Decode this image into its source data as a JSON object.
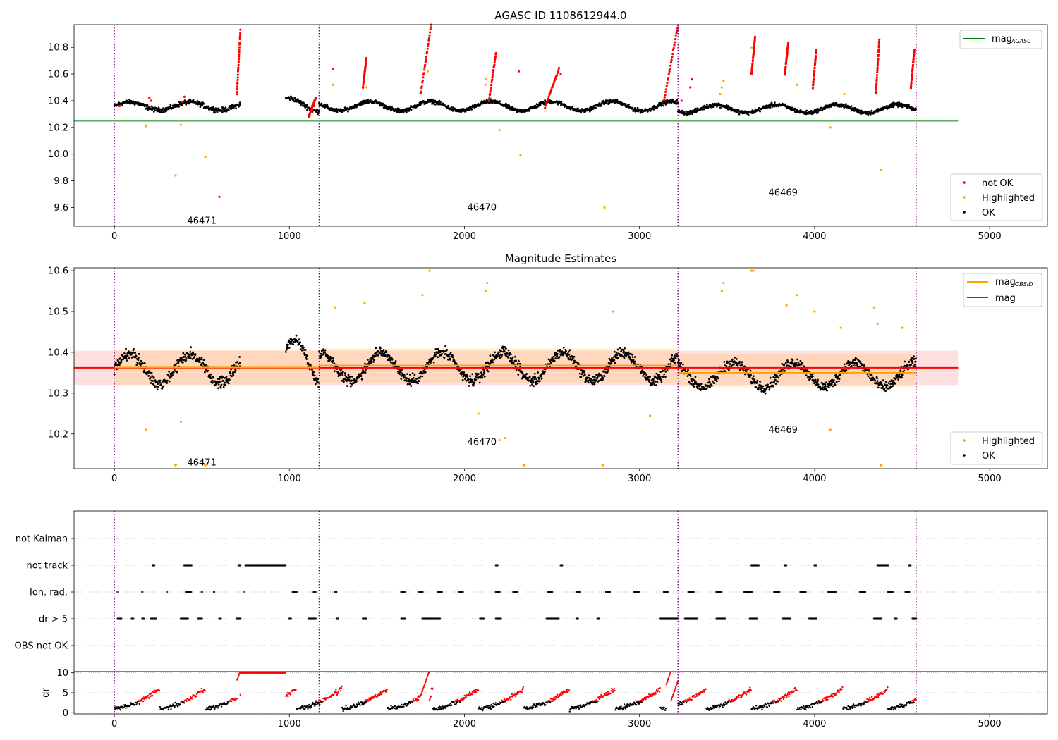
{
  "x_ticks": [
    "0",
    "1000",
    "2000",
    "3000",
    "4000",
    "5000"
  ],
  "chart_data": [
    {
      "type": "scatter",
      "title": "AGASC ID 1108612944.0",
      "xlim": [
        -230,
        5330
      ],
      "ylim": [
        9.46,
        10.97
      ],
      "y_ticks": [
        "9.6",
        "9.8",
        "10.0",
        "10.2",
        "10.4",
        "10.6",
        "10.8"
      ],
      "y_tick_values": [
        9.6,
        9.8,
        10.0,
        10.2,
        10.4,
        10.6,
        10.8
      ],
      "boundaries": [
        0,
        1170,
        3220,
        4580
      ],
      "obsids": [
        {
          "id": "46471",
          "x": 500,
          "y": 9.5
        },
        {
          "id": "46470",
          "x": 2100,
          "y": 9.6
        },
        {
          "id": "46469",
          "x": 3820,
          "y": 9.71
        }
      ],
      "reference_line": {
        "label": "mag",
        "sub": "AGASC",
        "y": 10.25,
        "x0": -230,
        "x1": 4820,
        "color": "#008000"
      },
      "segments": [
        {
          "x0": 0,
          "x1": 720,
          "base": 10.36,
          "amp": 0.03,
          "noise": 0.025
        },
        {
          "x0": 980,
          "x1": 1170,
          "base": 10.37,
          "amp": 0.05,
          "noise": 0.025
        },
        {
          "x0": 1170,
          "x1": 3220,
          "base": 10.36,
          "amp": 0.035,
          "noise": 0.022
        },
        {
          "x0": 3220,
          "x1": 4580,
          "base": 10.34,
          "amp": 0.03,
          "noise": 0.022
        }
      ],
      "not_ok_ramps": [
        {
          "x0": 700,
          "x1": 720,
          "y0": 10.45,
          "y1": 10.93
        },
        {
          "x0": 1110,
          "x1": 1150,
          "y0": 10.28,
          "y1": 10.42
        },
        {
          "x0": 1420,
          "x1": 1440,
          "y0": 10.5,
          "y1": 10.72
        },
        {
          "x0": 1750,
          "x1": 1810,
          "y0": 10.45,
          "y1": 10.97
        },
        {
          "x0": 2140,
          "x1": 2180,
          "y0": 10.4,
          "y1": 10.76
        },
        {
          "x0": 2460,
          "x1": 2540,
          "y0": 10.35,
          "y1": 10.64
        },
        {
          "x0": 3140,
          "x1": 3220,
          "y0": 10.4,
          "y1": 10.97
        },
        {
          "x0": 3640,
          "x1": 3660,
          "y0": 10.6,
          "y1": 10.88
        },
        {
          "x0": 3830,
          "x1": 3850,
          "y0": 10.6,
          "y1": 10.84
        },
        {
          "x0": 3990,
          "x1": 4010,
          "y0": 10.5,
          "y1": 10.78
        },
        {
          "x0": 4350,
          "x1": 4370,
          "y0": 10.45,
          "y1": 10.86
        },
        {
          "x0": 4550,
          "x1": 4570,
          "y0": 10.5,
          "y1": 10.78
        }
      ],
      "highlighted": [
        [
          180,
          10.21
        ],
        [
          350,
          9.84
        ],
        [
          380,
          10.22
        ],
        [
          520,
          9.98
        ],
        [
          2320,
          9.99
        ],
        [
          2200,
          10.18
        ],
        [
          2800,
          9.6
        ],
        [
          4380,
          9.88
        ],
        [
          4090,
          10.2
        ],
        [
          3470,
          10.5
        ],
        [
          3480,
          10.55
        ],
        [
          3640,
          10.8
        ],
        [
          3460,
          10.45
        ],
        [
          1250,
          10.52
        ],
        [
          1440,
          10.5
        ],
        [
          2120,
          10.52
        ],
        [
          2125,
          10.56
        ],
        [
          1790,
          10.62
        ],
        [
          4170,
          10.45
        ],
        [
          3900,
          10.52
        ]
      ],
      "outliers_not_ok": [
        [
          600,
          9.68
        ],
        [
          2310,
          10.62
        ],
        [
          1250,
          10.64
        ],
        [
          2550,
          10.6
        ]
      ],
      "legend": {
        "items": [
          "not OK",
          "Highlighted",
          "OK"
        ]
      }
    },
    {
      "type": "scatter",
      "title": "Magnitude Estimates",
      "xlim": [
        -230,
        5330
      ],
      "ylim": [
        10.115,
        10.607
      ],
      "y_ticks": [
        "10.2",
        "10.3",
        "10.4",
        "10.5",
        "10.6"
      ],
      "y_tick_values": [
        10.2,
        10.3,
        10.4,
        10.5,
        10.6
      ],
      "boundaries": [
        0,
        1170,
        3220,
        4580
      ],
      "obsids": [
        {
          "id": "46471",
          "x": 500,
          "y": 10.13
        },
        {
          "id": "46470",
          "x": 2100,
          "y": 10.18
        },
        {
          "id": "46469",
          "x": 3820,
          "y": 10.21
        }
      ],
      "mag_line": {
        "label": "mag",
        "y": 10.362,
        "band": [
          10.32,
          10.404
        ],
        "x0": -230,
        "x1": 4820,
        "color": "#ff0000"
      },
      "mag_obsid": {
        "label": "mag",
        "sub": "OBSID",
        "color": "#ffa500",
        "steps": [
          {
            "x0": 0,
            "x1": 1170,
            "y": 10.363,
            "band": [
              10.32,
              10.406
            ]
          },
          {
            "x0": 1170,
            "x1": 3220,
            "y": 10.368,
            "band": [
              10.325,
              10.41
            ]
          },
          {
            "x0": 3220,
            "x1": 4580,
            "y": 10.35,
            "band": [
              10.315,
              10.395
            ]
          }
        ]
      },
      "highlighted": [
        [
          180,
          10.21
        ],
        [
          380,
          10.23
        ],
        [
          2080,
          10.25
        ],
        [
          2200,
          10.185
        ],
        [
          2230,
          10.19
        ],
        [
          3060,
          10.245
        ],
        [
          4090,
          10.21
        ],
        [
          1260,
          10.51
        ],
        [
          1430,
          10.52
        ],
        [
          1760,
          10.54
        ],
        [
          1800,
          10.6
        ],
        [
          2120,
          10.55
        ],
        [
          2130,
          10.57
        ],
        [
          2850,
          10.5
        ],
        [
          3470,
          10.55
        ],
        [
          3480,
          10.57
        ],
        [
          3640,
          10.6
        ],
        [
          3650,
          10.6
        ],
        [
          3840,
          10.515
        ],
        [
          3900,
          10.54
        ],
        [
          4000,
          10.5
        ],
        [
          4150,
          10.46
        ],
        [
          4340,
          10.51
        ],
        [
          4360,
          10.47
        ],
        [
          4500,
          10.46
        ]
      ],
      "triangles_low": [
        350,
        520,
        2340,
        2790,
        4380
      ],
      "legend": {
        "items": [
          "Highlighted",
          "OK"
        ]
      }
    },
    {
      "type": "event_flags",
      "categories": [
        "not Kalman",
        "not track",
        "Ion. rad.",
        "dr > 5",
        "OBS not OK"
      ],
      "xlim": [
        -230,
        5330
      ],
      "boundaries": [
        0,
        1170,
        3220,
        4580
      ],
      "flags": {
        "not track": [
          [
            220,
            230
          ],
          [
            400,
            440
          ],
          [
            710,
            720
          ],
          [
            750,
            980
          ],
          [
            2180,
            2190
          ],
          [
            2550,
            2560
          ],
          [
            3640,
            3680
          ],
          [
            3830,
            3840
          ],
          [
            4000,
            4010
          ],
          [
            4360,
            4420
          ],
          [
            4540,
            4550
          ]
        ],
        "Ion. rad.": [
          [
            20,
            20
          ],
          [
            160,
            160
          ],
          [
            300,
            300
          ],
          [
            410,
            440
          ],
          [
            500,
            500
          ],
          [
            570,
            570
          ],
          [
            740,
            740
          ],
          [
            1020,
            1040
          ],
          [
            1140,
            1150
          ],
          [
            1260,
            1270
          ],
          [
            1640,
            1660
          ],
          [
            1740,
            1760
          ],
          [
            1850,
            1870
          ],
          [
            1970,
            1990
          ],
          [
            2180,
            2200
          ],
          [
            2280,
            2300
          ],
          [
            2480,
            2500
          ],
          [
            2640,
            2660
          ],
          [
            2810,
            2830
          ],
          [
            2970,
            3000
          ],
          [
            3140,
            3160
          ],
          [
            3280,
            3310
          ],
          [
            3440,
            3470
          ],
          [
            3600,
            3640
          ],
          [
            3770,
            3800
          ],
          [
            3920,
            3950
          ],
          [
            4080,
            4120
          ],
          [
            4260,
            4290
          ],
          [
            4420,
            4450
          ],
          [
            4520,
            4540
          ]
        ],
        "dr > 5": [
          [
            20,
            40
          ],
          [
            100,
            110
          ],
          [
            160,
            170
          ],
          [
            210,
            240
          ],
          [
            380,
            420
          ],
          [
            480,
            500
          ],
          [
            600,
            610
          ],
          [
            700,
            720
          ],
          [
            1000,
            1010
          ],
          [
            1110,
            1150
          ],
          [
            1270,
            1280
          ],
          [
            1420,
            1440
          ],
          [
            1640,
            1660
          ],
          [
            1760,
            1860
          ],
          [
            2090,
            2110
          ],
          [
            2180,
            2210
          ],
          [
            2470,
            2540
          ],
          [
            2640,
            2650
          ],
          [
            2760,
            2770
          ],
          [
            3120,
            3220
          ],
          [
            3260,
            3330
          ],
          [
            3440,
            3490
          ],
          [
            3630,
            3670
          ],
          [
            3820,
            3860
          ],
          [
            3970,
            4010
          ],
          [
            4340,
            4380
          ],
          [
            4460,
            4470
          ],
          [
            4560,
            4580
          ]
        ]
      }
    },
    {
      "type": "scatter",
      "ylabel": "dr",
      "xlim": [
        -230,
        5330
      ],
      "ylim": [
        -0.3,
        10.3
      ],
      "y_ticks": [
        "0",
        "5",
        "10"
      ],
      "y_tick_values": [
        0,
        5,
        10
      ],
      "boundaries": [
        0,
        1170,
        3220,
        4580
      ],
      "threshold": 5
    }
  ]
}
